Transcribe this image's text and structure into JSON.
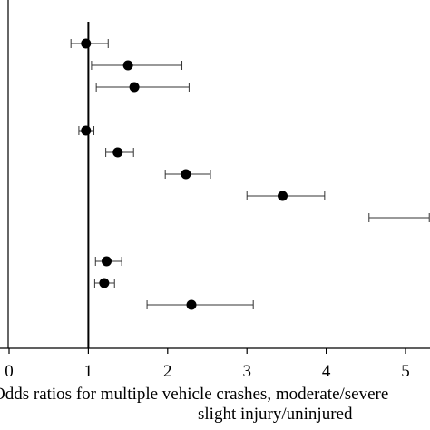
{
  "chart_data": {
    "type": "forest",
    "title": "",
    "xlabel_line1": "Odds ratios for multiple vehicle crashes, moderate/severe",
    "xlabel_line2": "slight injury/uninjured",
    "ylabel": "",
    "xlim": [
      0,
      5.25
    ],
    "reference_line": 1,
    "x_ticks": [
      0,
      1,
      2,
      3,
      4,
      5
    ],
    "x_tick_labels": [
      "0",
      "1",
      "2",
      "3",
      "4",
      "5"
    ],
    "grid": false,
    "points": [
      {
        "row": 1,
        "or": 0.97,
        "lo": 0.78,
        "hi": 1.25,
        "marker": true
      },
      {
        "row": 2,
        "or": 1.5,
        "lo": 1.04,
        "hi": 2.18,
        "marker": true
      },
      {
        "row": 3,
        "or": 1.58,
        "lo": 1.1,
        "hi": 2.27,
        "marker": true
      },
      {
        "row": 5,
        "or": 0.97,
        "lo": 0.88,
        "hi": 1.07,
        "marker": true
      },
      {
        "row": 6,
        "or": 1.37,
        "lo": 1.22,
        "hi": 1.57,
        "marker": true
      },
      {
        "row": 7,
        "or": 2.23,
        "lo": 1.97,
        "hi": 2.54,
        "marker": true
      },
      {
        "row": 8,
        "or": 3.45,
        "lo": 3.0,
        "hi": 3.98,
        "marker": false
      },
      {
        "row": 9,
        "or": null,
        "lo": 4.54,
        "hi": 5.3,
        "marker": false
      },
      {
        "row": 11,
        "or": 1.23,
        "lo": 1.09,
        "hi": 1.42,
        "marker": true
      },
      {
        "row": 12,
        "or": 1.2,
        "lo": 1.08,
        "hi": 1.33,
        "marker": true
      },
      {
        "row": 13,
        "or": 2.3,
        "lo": 1.74,
        "hi": 3.08,
        "marker": true
      }
    ]
  }
}
